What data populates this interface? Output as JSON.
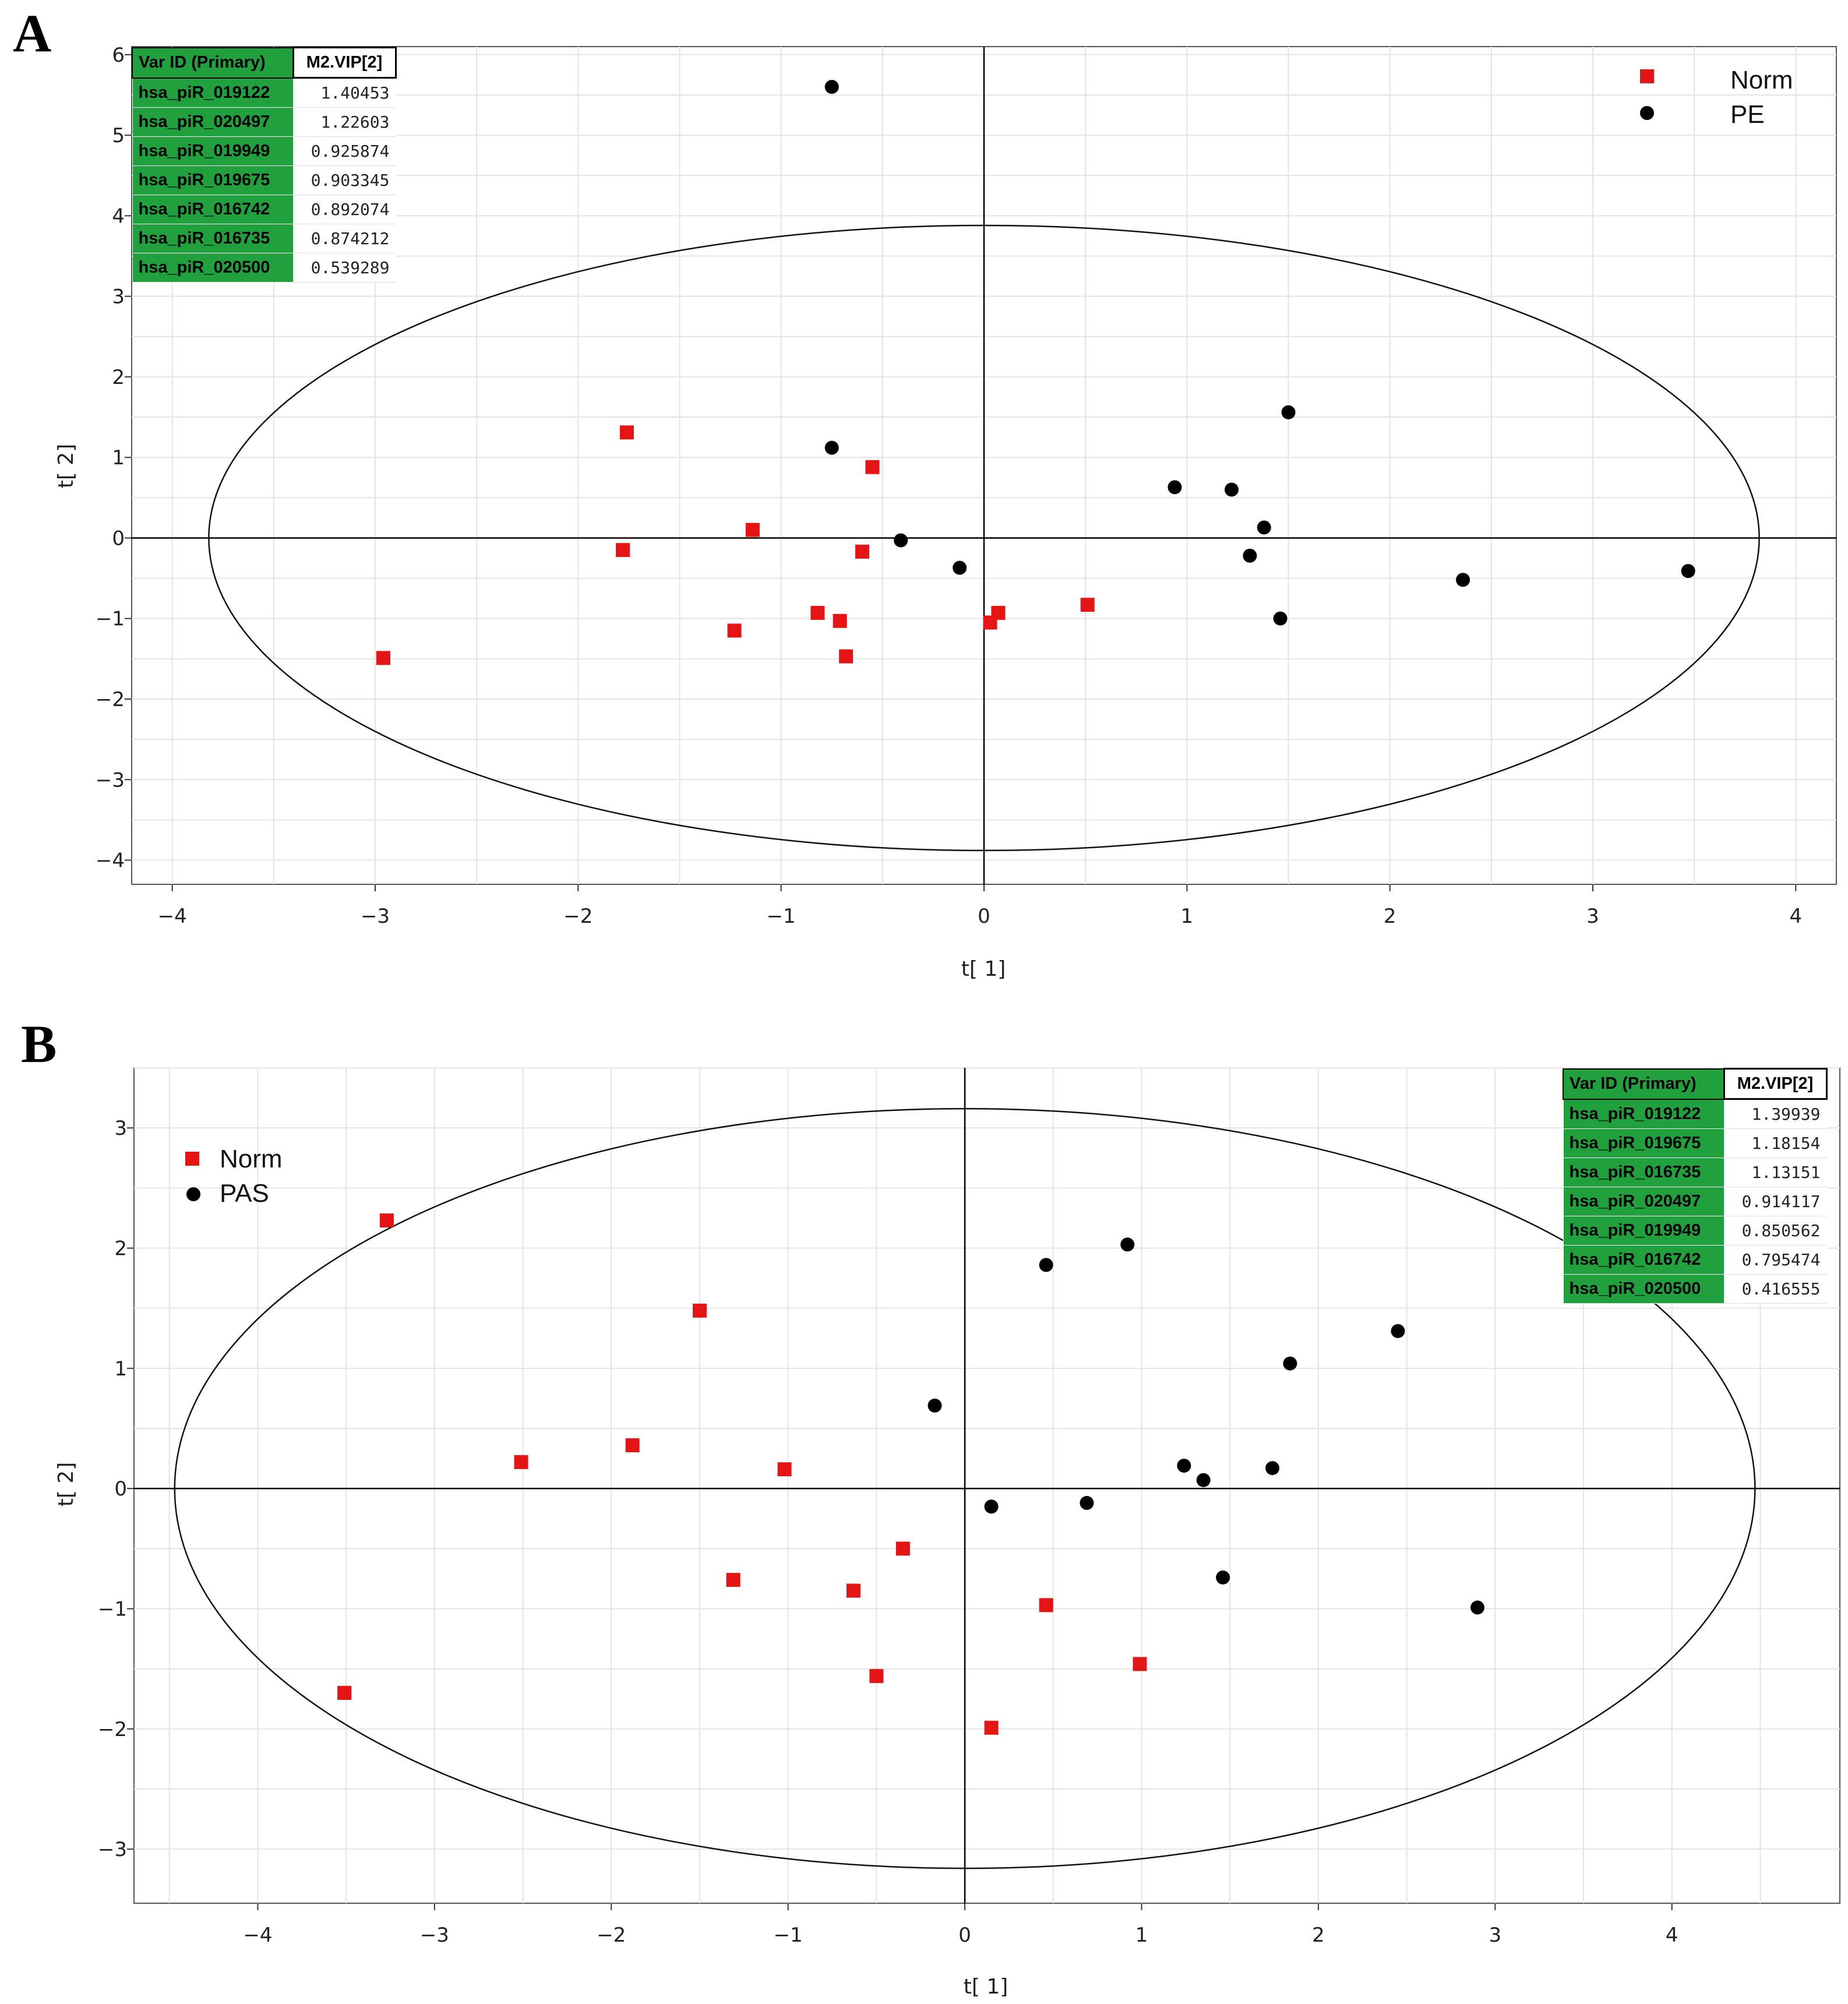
{
  "panels": [
    {
      "letter": "A",
      "xlabel": "t[ 1]",
      "ylabel": "t[ 2]",
      "legend": [
        {
          "label": "Norm",
          "color": "#e51515",
          "marker": "square"
        },
        {
          "label": "PE",
          "color": "#000000",
          "marker": "circle"
        }
      ],
      "vip_table": {
        "headers": [
          "Var ID (Primary)",
          "M2.VIP[2]"
        ],
        "rows": [
          [
            "hsa_piR_019122",
            "1.40453"
          ],
          [
            "hsa_piR_020497",
            "1.22603"
          ],
          [
            "hsa_piR_019949",
            "0.925874"
          ],
          [
            "hsa_piR_019675",
            "0.903345"
          ],
          [
            "hsa_piR_016742",
            "0.892074"
          ],
          [
            "hsa_piR_016735",
            "0.874212"
          ],
          [
            "hsa_piR_020500",
            "0.539289"
          ]
        ]
      }
    },
    {
      "letter": "B",
      "xlabel": "t[ 1]",
      "ylabel": "t[ 2]",
      "legend": [
        {
          "label": "Norm",
          "color": "#e51515",
          "marker": "square"
        },
        {
          "label": "PAS",
          "color": "#000000",
          "marker": "circle"
        }
      ],
      "vip_table": {
        "headers": [
          "Var ID (Primary)",
          "M2.VIP[2]"
        ],
        "rows": [
          [
            "hsa_piR_019122",
            "1.39939"
          ],
          [
            "hsa_piR_019675",
            "1.18154"
          ],
          [
            "hsa_piR_016735",
            "1.13151"
          ],
          [
            "hsa_piR_020497",
            "0.914117"
          ],
          [
            "hsa_piR_019949",
            "0.850562"
          ],
          [
            "hsa_piR_016742",
            "0.795474"
          ],
          [
            "hsa_piR_020500",
            "0.416555"
          ]
        ]
      }
    }
  ],
  "chart_data": [
    {
      "type": "scatter",
      "title": "A",
      "xlabel": "t[ 1]",
      "ylabel": "t[ 2]",
      "xlim": [
        -4.2,
        4.2
      ],
      "ylim": [
        -4.3,
        6.1
      ],
      "xticks": [
        -4,
        -3,
        -2,
        -1,
        0,
        1,
        2,
        3,
        4
      ],
      "yticks": [
        -4,
        -3,
        -2,
        -1,
        0,
        1,
        2,
        3,
        4,
        5,
        6
      ],
      "ellipse": {
        "rx": 3.82,
        "ry": 3.88
      },
      "series": [
        {
          "name": "Norm",
          "marker": "square",
          "color": "#e51515",
          "points": [
            [
              -2.96,
              -1.49
            ],
            [
              -1.76,
              1.31
            ],
            [
              -1.78,
              -0.15
            ],
            [
              -1.14,
              0.1
            ],
            [
              -1.23,
              -1.15
            ],
            [
              -0.82,
              -0.93
            ],
            [
              -0.71,
              -1.03
            ],
            [
              -0.68,
              -1.47
            ],
            [
              -0.55,
              0.88
            ],
            [
              -0.6,
              -0.17
            ],
            [
              0.07,
              -0.93
            ],
            [
              0.03,
              -1.05
            ],
            [
              0.51,
              -0.83
            ]
          ]
        },
        {
          "name": "PE",
          "marker": "circle",
          "color": "#000000",
          "points": [
            [
              -0.75,
              5.6
            ],
            [
              -0.75,
              1.12
            ],
            [
              -0.41,
              -0.03
            ],
            [
              -0.12,
              -0.37
            ],
            [
              0.94,
              0.63
            ],
            [
              1.22,
              0.6
            ],
            [
              1.38,
              0.13
            ],
            [
              1.5,
              1.56
            ],
            [
              1.31,
              -0.22
            ],
            [
              1.46,
              -1.0
            ],
            [
              2.36,
              -0.52
            ],
            [
              3.47,
              -0.41
            ]
          ]
        }
      ]
    },
    {
      "type": "scatter",
      "title": "B",
      "xlabel": "t[ 1]",
      "ylabel": "t[ 2]",
      "xlim": [
        -4.7,
        4.95
      ],
      "ylim": [
        -3.45,
        3.5
      ],
      "xticks": [
        -4,
        -3,
        -2,
        -1,
        0,
        1,
        2,
        3,
        4
      ],
      "yticks": [
        -3,
        -2,
        -1,
        0,
        1,
        2,
        3
      ],
      "ellipse": {
        "rx": 4.47,
        "ry": 3.16
      },
      "series": [
        {
          "name": "Norm",
          "marker": "square",
          "color": "#e51515",
          "points": [
            [
              -3.27,
              2.23
            ],
            [
              -3.51,
              -1.7
            ],
            [
              -2.51,
              0.22
            ],
            [
              -1.88,
              0.36
            ],
            [
              -1.5,
              1.48
            ],
            [
              -1.31,
              -0.76
            ],
            [
              -1.02,
              0.16
            ],
            [
              -0.63,
              -0.85
            ],
            [
              -0.35,
              -0.5
            ],
            [
              -0.5,
              -1.56
            ],
            [
              0.46,
              -0.97
            ],
            [
              0.99,
              -1.46
            ],
            [
              0.15,
              -1.99
            ]
          ]
        },
        {
          "name": "PAS",
          "marker": "circle",
          "color": "#000000",
          "points": [
            [
              -0.17,
              0.69
            ],
            [
              0.46,
              1.86
            ],
            [
              0.92,
              2.03
            ],
            [
              2.45,
              1.31
            ],
            [
              1.84,
              1.04
            ],
            [
              1.24,
              0.19
            ],
            [
              1.35,
              0.07
            ],
            [
              1.74,
              0.17
            ],
            [
              0.69,
              -0.12
            ],
            [
              0.15,
              -0.15
            ],
            [
              1.46,
              -0.74
            ],
            [
              2.9,
              -0.99
            ]
          ]
        }
      ]
    }
  ]
}
